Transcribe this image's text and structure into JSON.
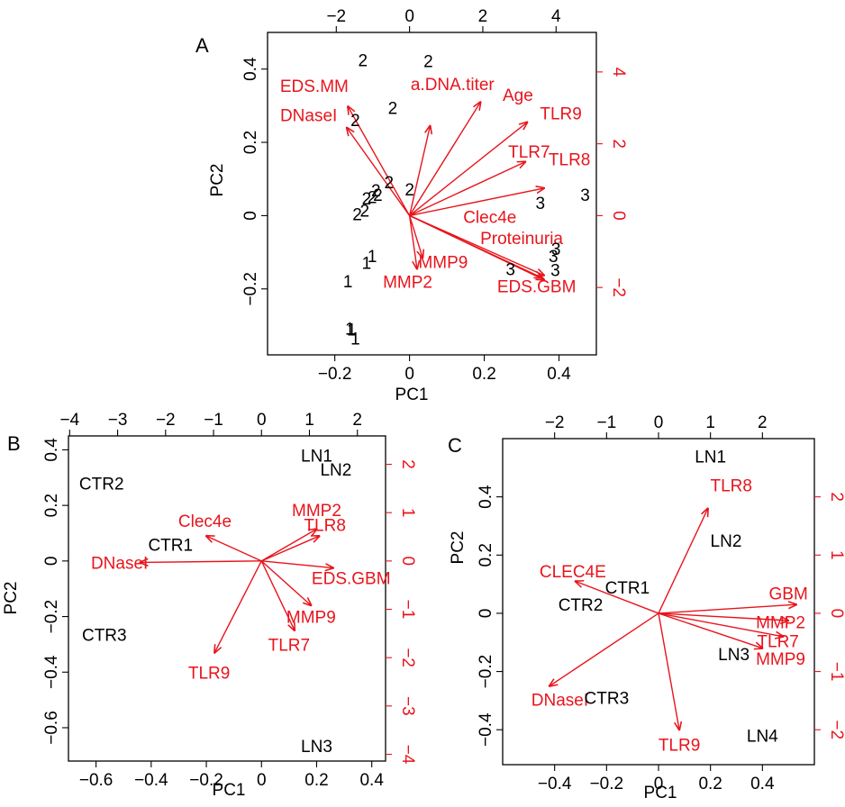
{
  "colors": {
    "variables": "#e8141c",
    "observations": "#000000",
    "frame": "#000000"
  },
  "chart_data": [
    {
      "panel": "A",
      "type": "scatter",
      "subtype": "biplot",
      "xlabel": "PC1",
      "ylabel": "PC2",
      "xlim": [
        -0.38,
        0.5
      ],
      "ylim": [
        -0.38,
        0.5
      ],
      "x_ticks": [
        -0.2,
        0.0,
        0.2,
        0.4
      ],
      "y_ticks": [
        -0.2,
        0.0,
        0.2,
        0.4
      ],
      "top_ticks": [
        -2,
        0,
        2,
        4
      ],
      "right_ticks": [
        -2,
        0,
        2,
        4
      ],
      "secondary_scale": 10.2,
      "observations": [
        {
          "label": "2",
          "x": -0.125,
          "y": 0.425
        },
        {
          "label": "2",
          "x": 0.05,
          "y": 0.422
        },
        {
          "label": "2",
          "x": -0.045,
          "y": 0.295
        },
        {
          "label": "2",
          "x": -0.145,
          "y": 0.262
        },
        {
          "label": "2",
          "x": -0.055,
          "y": 0.092
        },
        {
          "label": "2",
          "x": -0.1,
          "y": 0.052
        },
        {
          "label": "2",
          "x": 0.0,
          "y": 0.072
        },
        {
          "label": "2",
          "x": -0.09,
          "y": 0.07
        },
        {
          "label": "2",
          "x": -0.085,
          "y": 0.058
        },
        {
          "label": "2",
          "x": -0.115,
          "y": 0.048
        },
        {
          "label": "2",
          "x": -0.12,
          "y": 0.015
        },
        {
          "label": "2",
          "x": -0.14,
          "y": 0.005
        },
        {
          "label": "3",
          "x": 0.35,
          "y": 0.035
        },
        {
          "label": "3",
          "x": 0.47,
          "y": 0.058
        },
        {
          "label": "3",
          "x": 0.392,
          "y": -0.09
        },
        {
          "label": "3",
          "x": 0.385,
          "y": -0.11
        },
        {
          "label": "3",
          "x": 0.39,
          "y": -0.148
        },
        {
          "label": "3",
          "x": 0.27,
          "y": -0.145
        },
        {
          "label": "1",
          "x": -0.1,
          "y": -0.11
        },
        {
          "label": "1",
          "x": -0.115,
          "y": -0.128
        },
        {
          "label": "1",
          "x": -0.165,
          "y": -0.178
        },
        {
          "label": "1",
          "x": -0.16,
          "y": -0.308
        },
        {
          "label": "1",
          "x": -0.155,
          "y": -0.31
        },
        {
          "label": "1",
          "x": -0.145,
          "y": -0.335
        }
      ],
      "variables": [
        {
          "name": "EDS.MM",
          "x": -0.165,
          "y": 0.298,
          "lx": -0.255,
          "ly": 0.355
        },
        {
          "name": "DNaseI",
          "x": -0.168,
          "y": 0.24,
          "lx": -0.27,
          "ly": 0.275
        },
        {
          "name": "a.DNA.titer",
          "x": 0.055,
          "y": 0.245,
          "lx": 0.115,
          "ly": 0.36
        },
        {
          "name": "Age",
          "x": 0.19,
          "y": 0.31,
          "lx": 0.29,
          "ly": 0.33
        },
        {
          "name": "TLR9",
          "x": 0.315,
          "y": 0.255,
          "lx": 0.405,
          "ly": 0.28
        },
        {
          "name": "TLR7",
          "x": 0.31,
          "y": 0.147,
          "lx": 0.32,
          "ly": 0.175
        },
        {
          "name": "TLR8",
          "x": 0.36,
          "y": 0.075,
          "lx": 0.428,
          "ly": 0.155
        },
        {
          "name": "Clec4e",
          "x": 0.355,
          "y": -0.17,
          "lx": 0.215,
          "ly": -0.003
        },
        {
          "name": "Proteinuria",
          "x": 0.36,
          "y": -0.163,
          "lx": 0.3,
          "ly": -0.06
        },
        {
          "name": "EDS.GBM",
          "x": 0.36,
          "y": -0.175,
          "lx": 0.34,
          "ly": -0.192
        },
        {
          "name": "MMP9",
          "x": 0.035,
          "y": -0.115,
          "lx": 0.09,
          "ly": -0.125
        },
        {
          "name": "MMP2",
          "x": 0.02,
          "y": -0.145,
          "lx": -0.005,
          "ly": -0.18
        }
      ]
    },
    {
      "panel": "B",
      "type": "scatter",
      "subtype": "biplot",
      "xlabel": "PC1",
      "ylabel": "PC2",
      "xlim": [
        -0.7,
        0.45
      ],
      "ylim": [
        -0.72,
        0.45
      ],
      "x_ticks": [
        -0.6,
        -0.4,
        -0.2,
        0.0,
        0.2,
        0.4
      ],
      "y_ticks": [
        -0.6,
        -0.4,
        -0.2,
        0.0,
        0.2,
        0.4
      ],
      "top_ticks": [
        -4,
        -3,
        -2,
        -1,
        0,
        1,
        2
      ],
      "right_ticks": [
        -4,
        -3,
        -2,
        -1,
        0,
        1,
        2
      ],
      "secondary_scale": 5.75,
      "observations": [
        {
          "label": "LN1",
          "x": 0.2,
          "y": 0.38
        },
        {
          "label": "LN2",
          "x": 0.27,
          "y": 0.33
        },
        {
          "label": "CTR2",
          "x": -0.58,
          "y": 0.28
        },
        {
          "label": "CTR1",
          "x": -0.33,
          "y": 0.06
        },
        {
          "label": "CTR3",
          "x": -0.57,
          "y": -0.265
        },
        {
          "label": "LN3",
          "x": 0.2,
          "y": -0.665
        }
      ],
      "variables": [
        {
          "name": "MMP2",
          "x": 0.2,
          "y": 0.115,
          "lx": 0.2,
          "ly": 0.185
        },
        {
          "name": "TLR8",
          "x": 0.21,
          "y": 0.09,
          "lx": 0.23,
          "ly": 0.13
        },
        {
          "name": "Clec4e",
          "x": -0.2,
          "y": 0.09,
          "lx": -0.205,
          "ly": 0.145
        },
        {
          "name": "DNaseI",
          "x": -0.44,
          "y": -0.005,
          "lx": -0.515,
          "ly": -0.005
        },
        {
          "name": "EDS.GBM",
          "x": 0.26,
          "y": -0.025,
          "lx": 0.325,
          "ly": -0.06
        },
        {
          "name": "MMP9",
          "x": 0.18,
          "y": -0.16,
          "lx": 0.18,
          "ly": -0.2
        },
        {
          "name": "TLR7",
          "x": 0.12,
          "y": -0.25,
          "lx": 0.1,
          "ly": -0.3
        },
        {
          "name": "TLR9",
          "x": -0.17,
          "y": -0.33,
          "lx": -0.19,
          "ly": -0.4
        }
      ]
    },
    {
      "panel": "C",
      "type": "scatter",
      "subtype": "biplot",
      "xlabel": "PC1",
      "ylabel": "PC2",
      "xlim": [
        -0.6,
        0.6
      ],
      "ylim": [
        -0.52,
        0.6
      ],
      "x_ticks": [
        -0.4,
        -0.2,
        0.0,
        0.2,
        0.4
      ],
      "y_ticks": [
        -0.4,
        -0.2,
        0.0,
        0.2,
        0.4
      ],
      "top_ticks": [
        -2,
        -1,
        0,
        1,
        2
      ],
      "right_ticks": [
        -2,
        -1,
        0,
        1,
        2
      ],
      "secondary_scale": 5.0,
      "observations": [
        {
          "label": "LN1",
          "x": 0.2,
          "y": 0.54
        },
        {
          "label": "LN2",
          "x": 0.26,
          "y": 0.25
        },
        {
          "label": "CTR1",
          "x": -0.12,
          "y": 0.09
        },
        {
          "label": "CTR2",
          "x": -0.3,
          "y": 0.03
        },
        {
          "label": "LN3",
          "x": 0.29,
          "y": -0.14
        },
        {
          "label": "CTR3",
          "x": -0.2,
          "y": -0.29
        },
        {
          "label": "LN4",
          "x": 0.4,
          "y": -0.42
        }
      ],
      "variables": [
        {
          "name": "TLR8",
          "x": 0.19,
          "y": 0.36,
          "lx": 0.28,
          "ly": 0.44
        },
        {
          "name": "CLEC4E",
          "x": -0.32,
          "y": 0.11,
          "lx": -0.33,
          "ly": 0.145
        },
        {
          "name": "GBM",
          "x": 0.53,
          "y": 0.03,
          "lx": 0.5,
          "ly": 0.07
        },
        {
          "name": "MMP2",
          "x": 0.5,
          "y": -0.025,
          "lx": 0.47,
          "ly": -0.03
        },
        {
          "name": "TLR7",
          "x": 0.48,
          "y": -0.08,
          "lx": 0.46,
          "ly": -0.095
        },
        {
          "name": "MMP9",
          "x": 0.4,
          "y": -0.12,
          "lx": 0.47,
          "ly": -0.155
        },
        {
          "name": "DNaseI",
          "x": -0.42,
          "y": -0.25,
          "lx": -0.38,
          "ly": -0.295
        },
        {
          "name": "TLR9",
          "x": 0.08,
          "y": -0.4,
          "lx": 0.08,
          "ly": -0.45
        }
      ]
    }
  ]
}
